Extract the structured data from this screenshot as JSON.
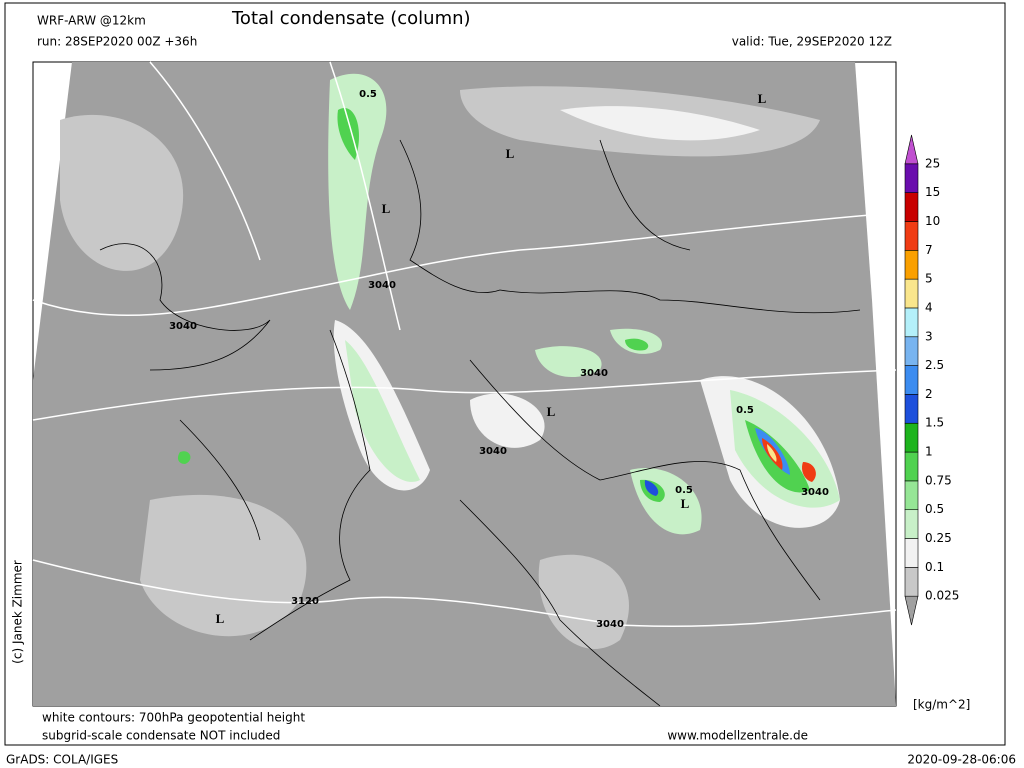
{
  "header": {
    "model": "WRF-ARW @12km",
    "title": "Total condensate (column)",
    "run": "run: 28SEP2020 00Z +36h",
    "valid": "valid: Tue, 29SEP2020 12Z"
  },
  "map": {
    "labels": [
      "L",
      "L",
      "L",
      "L",
      "L",
      "L",
      "3040",
      "3040",
      "3040",
      "3040",
      "3040",
      "3040",
      "3120",
      "0.5",
      "0.5",
      "0.5"
    ]
  },
  "legend": {
    "labels": [
      "0.025",
      "0.1",
      "0.25",
      "0.5",
      "0.75",
      "1",
      "1.5",
      "2",
      "2.5",
      "3",
      "4",
      "5",
      "7",
      "10",
      "15",
      "25"
    ],
    "colors": [
      "#a0a0a0",
      "#c8c8c8",
      "#f2f2f2",
      "#c8f0c8",
      "#96e696",
      "#50d250",
      "#1eb41e",
      "#1e50dc",
      "#3c8cf0",
      "#78b4f0",
      "#b4f0fa",
      "#fae68c",
      "#faa000",
      "#f03c14",
      "#c80000",
      "#6a0dad",
      "#c050d0"
    ],
    "unit": "[kg/m^2]"
  },
  "copyright": "(c) Janek Zimmer",
  "footer": {
    "note1": "white contours: 700hPa geopotential height",
    "note2": "subgrid-scale condensate NOT included",
    "site": "www.modellzentrale.de",
    "grads": "GrADS: COLA/IGES",
    "timestamp": "2020-09-28-06:06"
  }
}
